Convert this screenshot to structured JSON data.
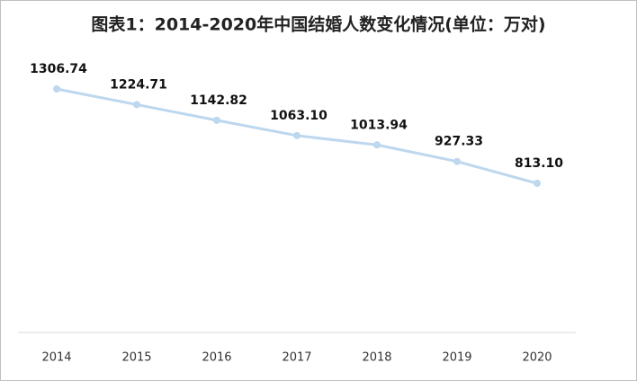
{
  "chart_data": {
    "type": "line",
    "title": "图表1：2014-2020年中国结婚人数变化情况(单位：万对)",
    "categories": [
      "2014",
      "2015",
      "2016",
      "2017",
      "2018",
      "2019",
      "2020"
    ],
    "series": [
      {
        "name": null,
        "color": "#bdd7ee",
        "values": [
          1306.74,
          1224.71,
          1142.82,
          1063.1,
          1013.94,
          927.33,
          813.1
        ],
        "value_labels": [
          "1306.74",
          "1224.71",
          "1142.82",
          "1063.10",
          "1013.94",
          "927.33",
          "813.10"
        ]
      }
    ]
  }
}
